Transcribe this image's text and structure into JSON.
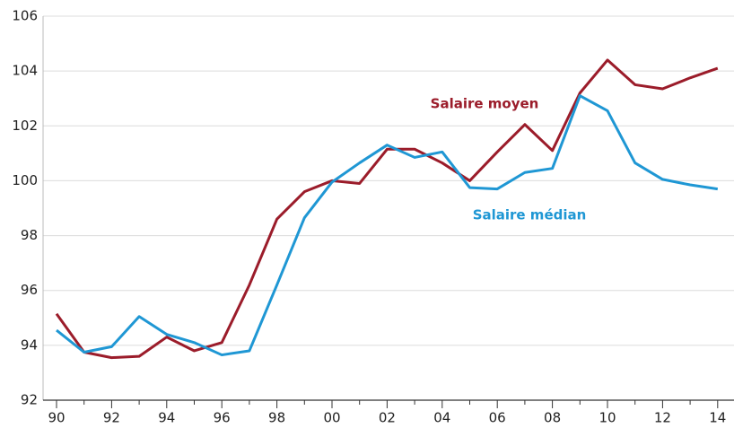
{
  "chart_data": {
    "type": "line",
    "categories": [
      "90",
      null,
      "92",
      null,
      "94",
      null,
      "96",
      null,
      "98",
      null,
      "00",
      null,
      "02",
      null,
      "04",
      null,
      "06",
      null,
      "08",
      null,
      "10",
      null,
      "12",
      null,
      "14"
    ],
    "series": [
      {
        "name": "Salaire moyen",
        "color": "#9b1c2a",
        "values": [
          95.15,
          93.75,
          93.55,
          93.6,
          94.3,
          93.8,
          94.1,
          96.2,
          98.6,
          99.6,
          100.0,
          99.9,
          101.15,
          101.15,
          100.65,
          100.0,
          101.05,
          102.05,
          101.1,
          103.2,
          104.4,
          103.5,
          103.35,
          103.75,
          104.1
        ]
      },
      {
        "name": "Salaire médian",
        "color": "#1f97d4",
        "values": [
          94.55,
          93.75,
          93.95,
          95.05,
          94.4,
          94.1,
          93.65,
          93.8,
          96.2,
          98.65,
          99.95,
          100.65,
          101.3,
          100.85,
          101.05,
          99.75,
          99.7,
          100.3,
          100.45,
          103.1,
          102.55,
          100.65,
          100.05,
          99.85,
          99.7
        ]
      }
    ],
    "ylim": [
      92,
      106
    ],
    "yticks": [
      92,
      94,
      96,
      98,
      100,
      102,
      104,
      106
    ],
    "grid": true
  }
}
